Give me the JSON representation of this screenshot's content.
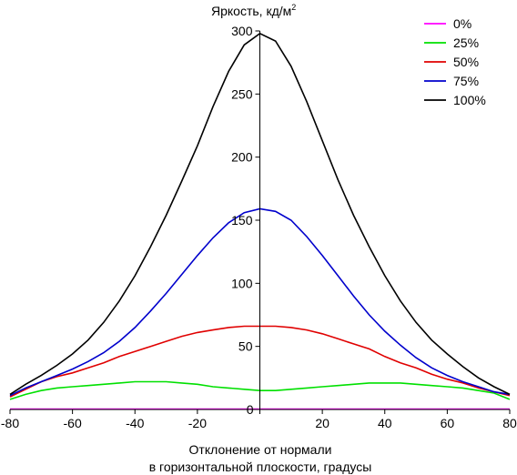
{
  "chart_data": {
    "type": "line",
    "ylabel": "Яркость, кд/м",
    "ylabel_superscript": "2",
    "xlabel_line1": "Отклонение от нормали",
    "xlabel_line2": "в горизонтальной плоскости, градусы",
    "xlim": [
      -80,
      80
    ],
    "ylim": [
      0,
      300
    ],
    "xticks": [
      -80,
      -60,
      -40,
      -20,
      0,
      20,
      40,
      60,
      80
    ],
    "yticks": [
      50,
      100,
      150,
      200,
      250,
      300
    ],
    "ytick_zero": "0",
    "grid": false,
    "legend_position": "top-right",
    "x": [
      -80,
      -75,
      -70,
      -65,
      -60,
      -55,
      -50,
      -45,
      -40,
      -35,
      -30,
      -25,
      -20,
      -15,
      -10,
      -5,
      0,
      5,
      10,
      15,
      20,
      25,
      30,
      35,
      40,
      45,
      50,
      55,
      60,
      65,
      70,
      75,
      80
    ],
    "series": [
      {
        "name": "0%",
        "color": "#ff00ff",
        "values": [
          0.3,
          0.3,
          0.3,
          0.3,
          0.3,
          0.3,
          0.3,
          0.3,
          0.3,
          0.3,
          0.3,
          0.3,
          0.3,
          0.3,
          0.3,
          0.3,
          0.3,
          0.3,
          0.3,
          0.3,
          0.3,
          0.3,
          0.3,
          0.3,
          0.3,
          0.3,
          0.3,
          0.3,
          0.3,
          0.3,
          0.3,
          0.3,
          0.3
        ]
      },
      {
        "name": "25%",
        "color": "#00e000",
        "values": [
          8,
          12,
          15,
          17,
          18,
          19,
          20,
          21,
          22,
          22,
          22,
          21,
          20,
          18,
          17,
          16,
          15,
          15,
          16,
          17,
          18,
          19,
          20,
          21,
          21,
          21,
          20,
          19,
          18,
          17,
          15,
          13,
          8
        ]
      },
      {
        "name": "50%",
        "color": "#e00000",
        "values": [
          10,
          16,
          22,
          26,
          29,
          33,
          37,
          42,
          46,
          50,
          54,
          58,
          61,
          63,
          65,
          66,
          66,
          66,
          65,
          63,
          60,
          56,
          52,
          48,
          42,
          37,
          33,
          28,
          24,
          21,
          17,
          14,
          11
        ]
      },
      {
        "name": "75%",
        "color": "#0000cc",
        "values": [
          11,
          17,
          22,
          27,
          32,
          38,
          45,
          54,
          65,
          78,
          92,
          107,
          122,
          136,
          148,
          156,
          159,
          157,
          150,
          137,
          122,
          106,
          90,
          75,
          62,
          51,
          41,
          33,
          27,
          22,
          18,
          14,
          12
        ]
      },
      {
        "name": "100%",
        "color": "#000000",
        "values": [
          12,
          20,
          27,
          35,
          44,
          55,
          69,
          86,
          106,
          129,
          154,
          181,
          209,
          240,
          268,
          289,
          298,
          292,
          272,
          244,
          213,
          182,
          154,
          129,
          106,
          86,
          69,
          55,
          44,
          34,
          25,
          18,
          12
        ]
      }
    ]
  }
}
